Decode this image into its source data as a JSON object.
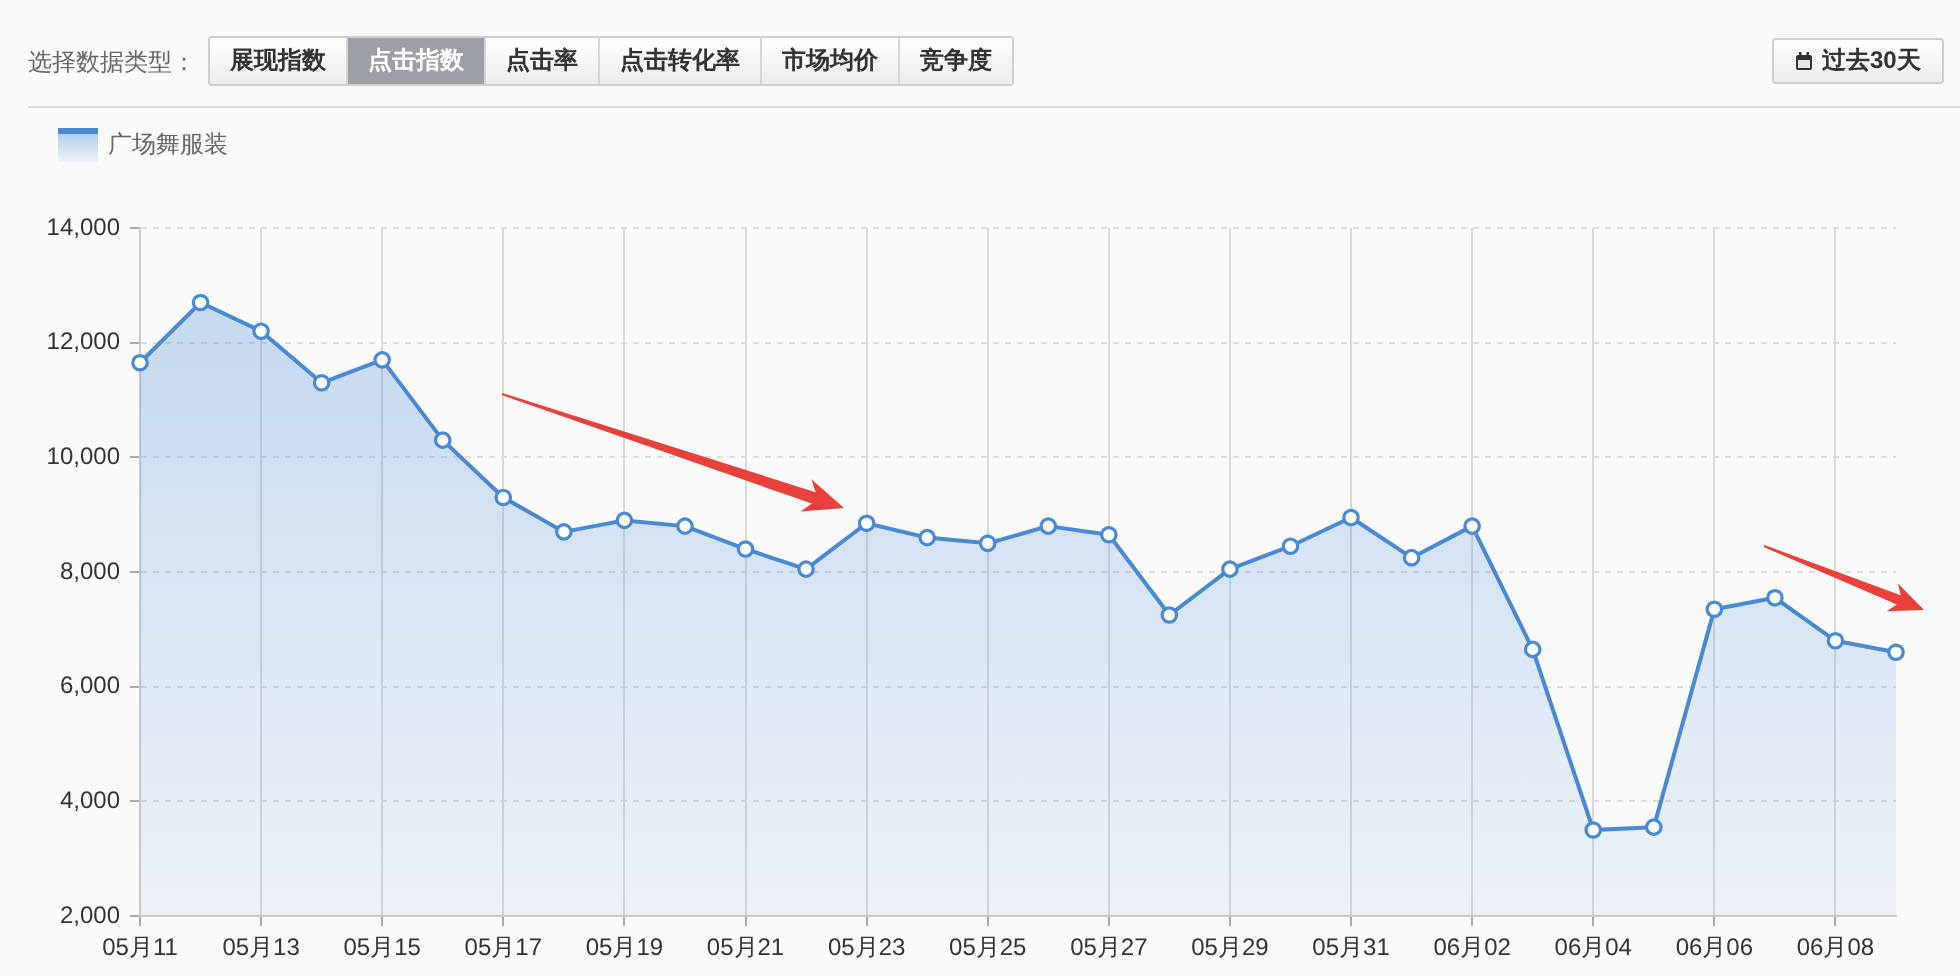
{
  "chart_data": {
    "type": "area",
    "categories": [
      "05月11",
      null,
      "05月13",
      null,
      "05月15",
      null,
      "05月17",
      null,
      "05月19",
      null,
      "05月21",
      null,
      "05月23",
      null,
      "05月25",
      null,
      "05月27",
      null,
      "05月29",
      null,
      "05月31",
      null,
      "06月02",
      null,
      "06月04",
      null,
      "06月06",
      null,
      "06月08",
      null
    ],
    "series": [
      {
        "name": "广场舞服装",
        "color": "#4a89d4",
        "values": [
          11650,
          12700,
          12200,
          11300,
          11700,
          10300,
          9300,
          8700,
          8900,
          8800,
          8400,
          8050,
          8850,
          8600,
          8500,
          8800,
          8650,
          7250,
          8050,
          8450,
          8950,
          8250,
          8800,
          6650,
          3500,
          3550,
          7350,
          7550,
          6800,
          6600
        ]
      }
    ],
    "ylim": [
      2000,
      14000
    ],
    "yticks": [
      {
        "value": 2000,
        "label": "2,000"
      },
      {
        "value": 4000,
        "label": "4,000"
      },
      {
        "value": 6000,
        "label": "6,000"
      },
      {
        "value": 8000,
        "label": "8,000"
      },
      {
        "value": 10000,
        "label": "10,000"
      },
      {
        "value": 12000,
        "label": "12,000"
      },
      {
        "value": 14000,
        "label": "14,000"
      }
    ],
    "grid": true,
    "legend": "top left",
    "marker": "circle",
    "annotations": [
      "选择数据类型：",
      "展现指数",
      "点击指数",
      "点击率",
      "点击转化率",
      "市场均价",
      "竞争度",
      "过去30天"
    ]
  }
}
